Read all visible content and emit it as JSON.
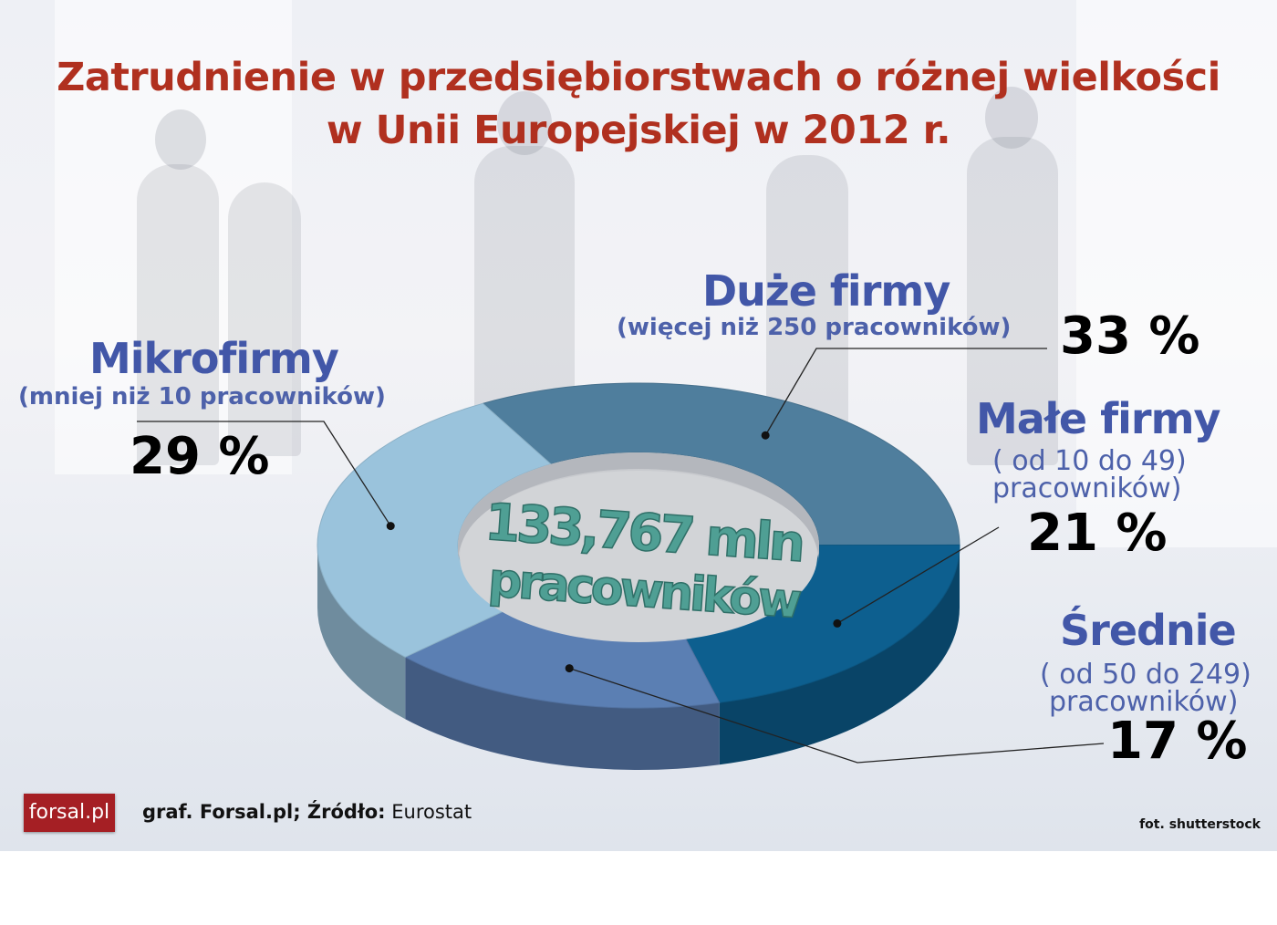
{
  "title": {
    "line1": "Zatrudnienie w przedsiębiorstwach o różnej wielkości",
    "line2": "w Unii Europejskiej w 2012 r."
  },
  "chart_data": {
    "type": "pie",
    "title": "Zatrudnienie w przedsiębiorstwach o różnej wielkości w Unii Europejskiej w 2012 r.",
    "center_label": {
      "line1": "133,767 mln",
      "line2": "pracowników"
    },
    "units": "%",
    "slices": [
      {
        "key": "duze",
        "name": "Duże firmy",
        "desc": "(więcej niż 250 pracowników)",
        "value": 33,
        "label": "33 %",
        "color": "#4f7e9d"
      },
      {
        "key": "male",
        "name": "Małe firmy",
        "desc1": "( od 10 do 49)",
        "desc2": "pracowników)",
        "value": 21,
        "label": "21 %",
        "color": "#0d5f8f"
      },
      {
        "key": "srednie",
        "name": "Średnie",
        "desc1": "( od 50 do 249)",
        "desc2": "pracowników)",
        "value": 17,
        "label": "17 %",
        "color": "#5b7fb3"
      },
      {
        "key": "mikro",
        "name": "Mikrofirmy",
        "desc": "(mniej niż 10 pracowników)",
        "value": 29,
        "label": "29 %",
        "color": "#9ac3dc"
      }
    ]
  },
  "footer": {
    "logo": "forsal.pl",
    "source_prefix": "graf. Forsal.pl; Źródło:",
    "source_name": "Eurostat",
    "photo_credit": "fot. shutterstock"
  }
}
